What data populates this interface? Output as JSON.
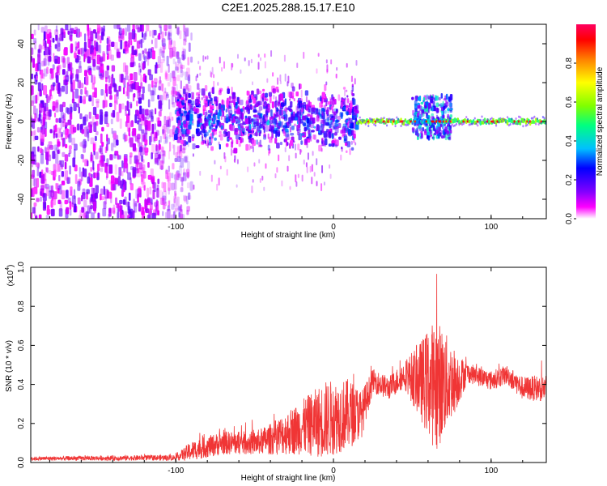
{
  "figure_title": "C2E1.2025.288.15.17.E10",
  "chart_data": [
    {
      "type": "heatmap",
      "panel": "spectrogram",
      "title": "C2E1.2025.288.15.17.E10",
      "xlabel": "Height of straight line (km)",
      "ylabel": "Frequency (Hz)",
      "xlim": [
        -192,
        135
      ],
      "ylim": [
        -50,
        50
      ],
      "xticks": [
        -100,
        0,
        100
      ],
      "xtick_labels": [
        "-100",
        "0",
        "100"
      ],
      "yticks": [
        -40,
        -20,
        0,
        20,
        40
      ],
      "ytick_labels": [
        "-40",
        "-20",
        "0",
        "20",
        "40"
      ],
      "colorbar": {
        "label": "Normalized spectral amplitude",
        "range": [
          0,
          1
        ],
        "ticks": [
          0.0,
          0.2,
          0.4,
          0.6,
          0.8
        ],
        "tick_labels": [
          "0.0",
          "0.2",
          "0.4",
          "0.6",
          "0.8"
        ],
        "colors": [
          "#ffffff",
          "#ff00ff",
          "#8000ff",
          "#0000ff",
          "#00c0ff",
          "#00ff80",
          "#80ff00",
          "#ffff00",
          "#ff8000",
          "#ff0000",
          "#ff0060"
        ]
      },
      "regions": [
        {
          "name": "broadband noise",
          "x_range": [
            -192,
            -95
          ],
          "freq_range": [
            -50,
            50
          ],
          "amplitude": 0.1
        },
        {
          "name": "turbulent band",
          "x_range": [
            -100,
            15
          ],
          "freq_range": [
            -15,
            15
          ],
          "amplitude": 0.3
        },
        {
          "name": "narrow tone",
          "x_range": [
            15,
            135
          ],
          "freq_center": 0,
          "amplitude": 0.95
        },
        {
          "name": "burst",
          "x_range": [
            50,
            75
          ],
          "freq_range": [
            -10,
            15
          ],
          "amplitude": 0.35
        }
      ]
    },
    {
      "type": "line",
      "panel": "snr",
      "xlabel": "Height of straight line (km)",
      "ylabel": "SNR (10 * v/v)",
      "y_scale_label": "(x10",
      "y_scale_exponent": "4",
      "xlim": [
        -192,
        135
      ],
      "ylim": [
        0,
        1.0
      ],
      "xticks": [
        -100,
        0,
        100
      ],
      "xtick_labels": [
        "-100",
        "0",
        "100"
      ],
      "yticks": [
        0.0,
        0.2,
        0.4,
        0.6,
        0.8,
        1.0
      ],
      "ytick_labels": [
        "0.0",
        "0.2",
        "0.4",
        "0.6",
        "0.8",
        "1.0"
      ],
      "series": [
        {
          "name": "SNR",
          "color": "#f03535",
          "envelope": [
            {
              "x": -192,
              "mean": 0.02,
              "spread": 0.01
            },
            {
              "x": -100,
              "mean": 0.025,
              "spread": 0.015
            },
            {
              "x": -90,
              "mean": 0.06,
              "spread": 0.05
            },
            {
              "x": -70,
              "mean": 0.1,
              "spread": 0.06
            },
            {
              "x": -50,
              "mean": 0.1,
              "spread": 0.06
            },
            {
              "x": -40,
              "mean": 0.12,
              "spread": 0.08
            },
            {
              "x": -20,
              "mean": 0.18,
              "spread": 0.14
            },
            {
              "x": -5,
              "mean": 0.22,
              "spread": 0.2
            },
            {
              "x": 10,
              "mean": 0.25,
              "spread": 0.18
            },
            {
              "x": 18,
              "mean": 0.25,
              "spread": 0.12
            },
            {
              "x": 25,
              "mean": 0.42,
              "spread": 0.06
            },
            {
              "x": 35,
              "mean": 0.38,
              "spread": 0.06
            },
            {
              "x": 45,
              "mean": 0.45,
              "spread": 0.07
            },
            {
              "x": 55,
              "mean": 0.42,
              "spread": 0.2
            },
            {
              "x": 65,
              "mean": 0.4,
              "spread": 0.35
            },
            {
              "x": 78,
              "mean": 0.42,
              "spread": 0.15
            },
            {
              "x": 85,
              "mean": 0.46,
              "spread": 0.05
            },
            {
              "x": 100,
              "mean": 0.42,
              "spread": 0.05
            },
            {
              "x": 110,
              "mean": 0.45,
              "spread": 0.05
            },
            {
              "x": 120,
              "mean": 0.38,
              "spread": 0.06
            },
            {
              "x": 135,
              "mean": 0.38,
              "spread": 0.07
            }
          ]
        }
      ]
    }
  ]
}
